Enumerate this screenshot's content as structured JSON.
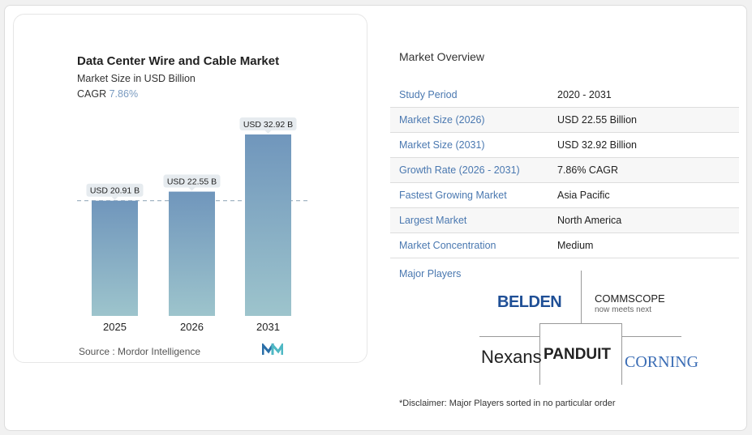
{
  "chart_data": {
    "type": "bar",
    "title": "Data Center Wire and Cable Market",
    "subtitle": "Market Size in USD Billion",
    "cagr_label": "CAGR",
    "cagr_value": "7.86%",
    "categories": [
      "2025",
      "2026",
      "2031"
    ],
    "values": [
      20.91,
      22.55,
      32.92
    ],
    "data_labels": [
      "USD 20.91 B",
      "USD 22.55 B",
      "USD 32.92 B"
    ],
    "bar_color": "#7096bc",
    "bar_color_bottom": "#9dc4cc",
    "reference_line": "dashed at 2025 value",
    "source": "Source :  Mordor Intelligence"
  },
  "overview": {
    "title": "Market Overview",
    "rows": [
      {
        "k": "Study Period",
        "v": "2020 - 2031"
      },
      {
        "k": "Market Size (2026)",
        "v": "USD 22.55 Billion"
      },
      {
        "k": "Market Size (2031)",
        "v": "USD 32.92 Billion"
      },
      {
        "k": "Growth Rate (2026 - 2031)",
        "v": "7.86% CAGR"
      },
      {
        "k": "Fastest Growing Market",
        "v": "Asia Pacific"
      },
      {
        "k": "Largest Market",
        "v": "North America"
      },
      {
        "k": "Market Concentration",
        "v": "Medium"
      }
    ],
    "major_players_label": "Major Players",
    "players": [
      "BELDEN",
      "COMMSCOPE",
      "now meets next",
      "Nexans",
      "PANDUIT",
      "CORNING"
    ],
    "disclaimer": "*Disclaimer: Major Players sorted in no particular order"
  }
}
